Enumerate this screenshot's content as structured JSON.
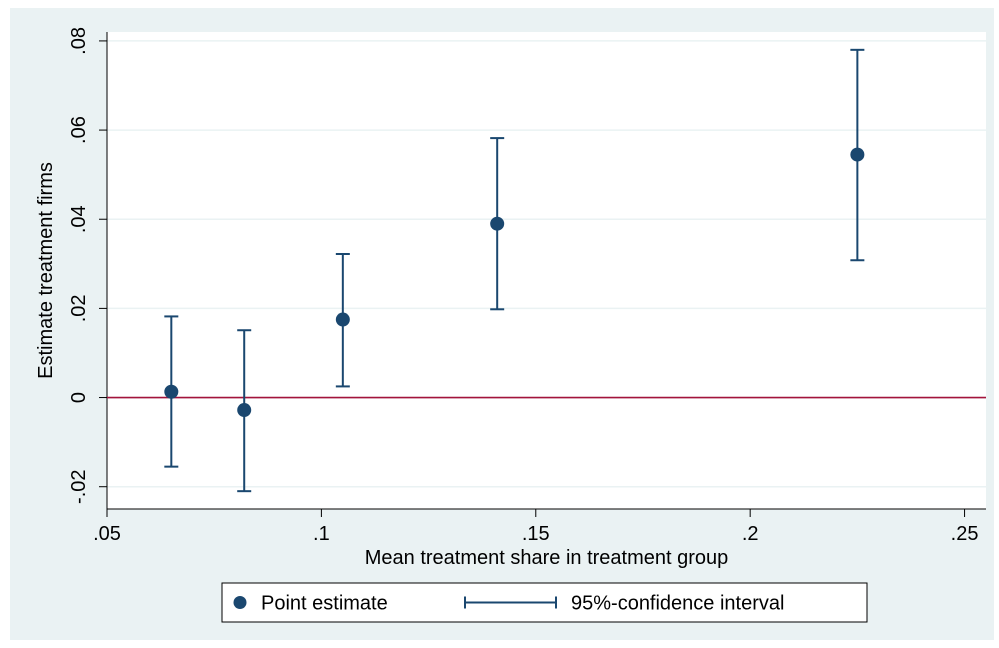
{
  "chart_data": {
    "type": "scatter",
    "title": "",
    "xlabel": "Mean treatment share in treatment group",
    "ylabel": "Estimate treatment firms",
    "xlim": [
      0.05,
      0.255
    ],
    "ylim": [
      -0.025,
      0.082
    ],
    "x_ticks": [
      0.05,
      0.1,
      0.15,
      0.2,
      0.25
    ],
    "x_tick_labels": [
      ".05",
      ".1",
      ".15",
      ".2",
      ".25"
    ],
    "y_ticks": [
      -0.02,
      0,
      0.02,
      0.04,
      0.06,
      0.08
    ],
    "y_tick_labels": [
      "-.02",
      "0",
      ".02",
      ".04",
      ".06",
      ".08"
    ],
    "grid": "horizontal",
    "reference_line": {
      "y": 0,
      "color": "#a3143c"
    },
    "series": [
      {
        "name": "Point estimate",
        "kind": "point",
        "color": "#1a476f",
        "points": [
          {
            "x": 0.065,
            "y": 0.0013,
            "ci_low": -0.0155,
            "ci_high": 0.0182
          },
          {
            "x": 0.082,
            "y": -0.0028,
            "ci_low": -0.021,
            "ci_high": 0.0151
          },
          {
            "x": 0.105,
            "y": 0.0175,
            "ci_low": 0.0025,
            "ci_high": 0.0322
          },
          {
            "x": 0.141,
            "y": 0.039,
            "ci_low": 0.0198,
            "ci_high": 0.0582
          },
          {
            "x": 0.225,
            "y": 0.0545,
            "ci_low": 0.0308,
            "ci_high": 0.078
          }
        ]
      },
      {
        "name": "95%-confidence interval",
        "kind": "interval",
        "color": "#1a476f"
      }
    ],
    "legend": {
      "position": "bottom",
      "items": [
        "Point estimate",
        "95%-confidence interval"
      ]
    },
    "colors": {
      "background": "#eaf2f3",
      "plot_background": "#ffffff",
      "grid": "#eaf2f3",
      "marker": "#1a476f",
      "reference_line": "#a3143c"
    }
  }
}
